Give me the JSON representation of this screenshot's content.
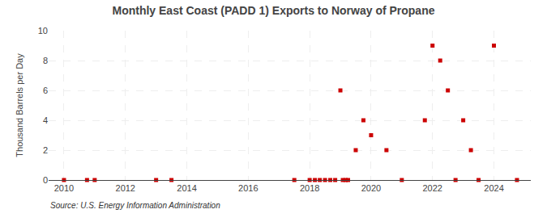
{
  "chart_data": {
    "type": "scatter",
    "title": "Monthly East Coast (PADD 1) Exports to Norway of Propane",
    "ylabel": "Thousand Barrels per Day",
    "annotations": [
      "Source: U.S. Energy Information Administration"
    ],
    "x": [
      2010.0,
      2010.75,
      2011.0,
      2013.0,
      2013.5,
      2017.5,
      2018.0,
      2018.17,
      2018.33,
      2018.5,
      2018.67,
      2018.83,
      2019.0,
      2019.08,
      2019.17,
      2019.25,
      2019.5,
      2019.75,
      2020.0,
      2020.5,
      2021.0,
      2021.75,
      2022.0,
      2022.25,
      2022.5,
      2022.75,
      2023.0,
      2023.25,
      2023.5,
      2024.0,
      2024.75
    ],
    "values": [
      0.0,
      0.0,
      0.0,
      0.0,
      0.0,
      0.0,
      0.0,
      0.0,
      0.0,
      0.0,
      0.0,
      0.0,
      6.0,
      0.0,
      0.0,
      0.0,
      2.0,
      4.0,
      3.0,
      2.0,
      0.0,
      4.0,
      9.0,
      8.0,
      6.0,
      0.0,
      4.0,
      2.0,
      0.0,
      9.0,
      0.0
    ],
    "color": "#cc0000",
    "marker": "square",
    "xlim": [
      2009.5,
      2025.2
    ],
    "ylim": [
      0,
      10
    ],
    "xticks": [
      2010,
      2012,
      2014,
      2016,
      2018,
      2020,
      2022,
      2024
    ],
    "yticks": [
      0,
      2,
      4,
      6,
      8,
      10
    ],
    "grid": true
  }
}
